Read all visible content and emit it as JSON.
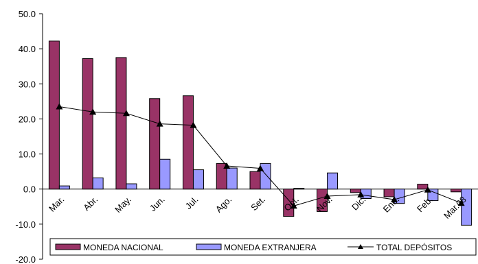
{
  "chart_data": {
    "type": "bar",
    "categories": [
      "Mar.",
      "Abr.",
      "May.",
      "Jun.",
      "Jul.",
      "Ago.",
      "Set.",
      "Oct.",
      "Nov.",
      "Dic.",
      "Ene.",
      "Feb.",
      "Mar.08"
    ],
    "ylim": [
      -20,
      50
    ],
    "yticks": [
      "50.0",
      "40.0",
      "30.0",
      "20.0",
      "10.0",
      "0.0",
      "-10.0",
      "-20.0"
    ],
    "ytick_values": [
      50,
      40,
      30,
      20,
      10,
      0,
      -10,
      -20
    ],
    "series": [
      {
        "name": "MONEDA NACIONAL",
        "type": "bar",
        "color": "#993366",
        "values": [
          42.2,
          37.2,
          37.5,
          25.8,
          26.6,
          7.3,
          5.0,
          -7.8,
          -6.4,
          -1.0,
          -2.2,
          1.4,
          -0.8
        ]
      },
      {
        "name": "MONEDA EXTRANJERA",
        "type": "bar",
        "color": "#9999FF",
        "values": [
          0.9,
          3.2,
          1.5,
          8.5,
          5.5,
          6.0,
          7.3,
          0.2,
          4.6,
          -2.7,
          -4.1,
          -3.3,
          -10.3
        ]
      },
      {
        "name": "TOTAL DEPÓSITOS",
        "type": "line",
        "color": "#000000",
        "values": [
          23.5,
          22.0,
          21.6,
          18.6,
          18.2,
          6.6,
          5.9,
          -4.8,
          -2.0,
          -1.6,
          -3.0,
          -0.2,
          -4.0
        ]
      }
    ],
    "grid": false,
    "legend_position": "bottom"
  }
}
